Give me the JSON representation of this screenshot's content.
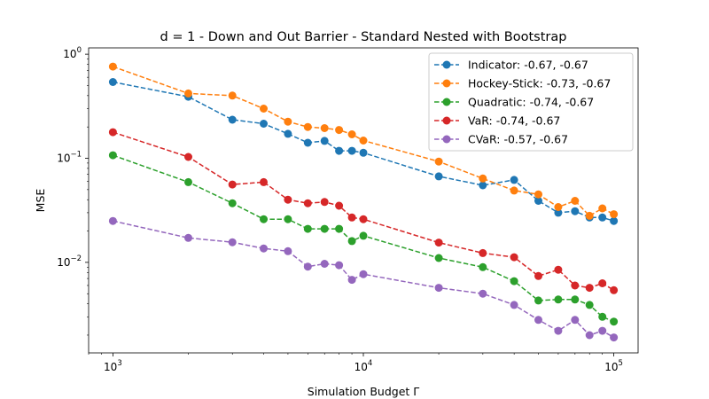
{
  "chart_data": {
    "type": "line",
    "title": "d = 1 - Down and Out Barrier - Standard Nested with Bootstrap",
    "xlabel": "Simulation Budget Γ",
    "ylabel": "MSE",
    "xscale": "log",
    "yscale": "log",
    "xlim": [
      800,
      125000
    ],
    "ylim": [
      0.00135,
      1.15
    ],
    "xticks": [
      {
        "value": 1000,
        "base": "10",
        "exp": "3"
      },
      {
        "value": 10000,
        "base": "10",
        "exp": "4"
      },
      {
        "value": 100000,
        "base": "10",
        "exp": "5"
      }
    ],
    "yticks": [
      {
        "value": 0.01,
        "base": "10",
        "exp": "−2"
      },
      {
        "value": 0.1,
        "base": "10",
        "exp": "−1"
      },
      {
        "value": 1,
        "base": "10",
        "exp": "0"
      }
    ],
    "grid": false,
    "legend_position": "top-right",
    "x": [
      1000,
      2000,
      3000,
      4000,
      5000,
      6000,
      7000,
      8000,
      9000,
      10000,
      20000,
      30000,
      40000,
      50000,
      60000,
      70000,
      80000,
      90000,
      100000
    ],
    "series": [
      {
        "name": "Indicator: -0.67, -0.67",
        "color": "#1f77b4",
        "values": [
          0.54,
          0.39,
          0.235,
          0.215,
          0.172,
          0.141,
          0.147,
          0.118,
          0.118,
          0.113,
          0.067,
          0.055,
          0.062,
          0.039,
          0.03,
          0.031,
          0.027,
          0.027,
          0.025
        ]
      },
      {
        "name": "Hockey-Stick: -0.73, -0.67",
        "color": "#ff7f0e",
        "values": [
          0.76,
          0.42,
          0.4,
          0.3,
          0.225,
          0.2,
          0.195,
          0.187,
          0.17,
          0.148,
          0.093,
          0.064,
          0.049,
          0.045,
          0.034,
          0.039,
          0.028,
          0.033,
          0.029
        ]
      },
      {
        "name": "Quadratic: -0.74, -0.67",
        "color": "#2ca02c",
        "values": [
          0.107,
          0.059,
          0.037,
          0.026,
          0.026,
          0.021,
          0.021,
          0.021,
          0.016,
          0.018,
          0.011,
          0.009,
          0.0066,
          0.0043,
          0.0044,
          0.0044,
          0.0039,
          0.003,
          0.0027
        ]
      },
      {
        "name": "VaR: -0.74, -0.67",
        "color": "#d62728",
        "values": [
          0.178,
          0.103,
          0.056,
          0.059,
          0.04,
          0.037,
          0.038,
          0.035,
          0.027,
          0.026,
          0.0155,
          0.0123,
          0.0112,
          0.0074,
          0.0085,
          0.006,
          0.0057,
          0.0063,
          0.0054
        ]
      },
      {
        "name": "CVaR: -0.57, -0.67",
        "color": "#9467bd",
        "values": [
          0.025,
          0.0172,
          0.0156,
          0.0136,
          0.0128,
          0.0091,
          0.0097,
          0.0094,
          0.0068,
          0.0077,
          0.0057,
          0.005,
          0.0039,
          0.0028,
          0.0022,
          0.0028,
          0.002,
          0.0022,
          0.0019
        ]
      }
    ]
  }
}
